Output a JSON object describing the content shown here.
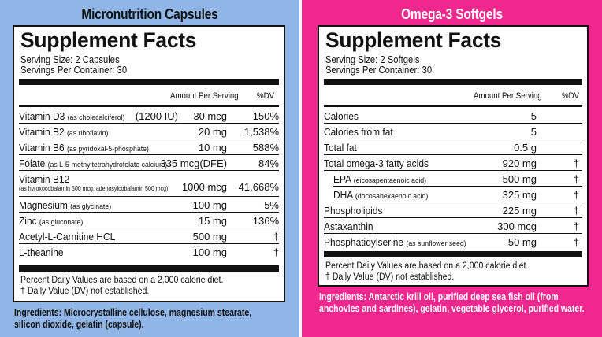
{
  "left": {
    "panel_title": "Micronutrition Capsules",
    "facts_title": "Supplement Facts",
    "serving_size": "Serving Size: 2 Capsules",
    "servings_per_container": "Servings Per Container: 30",
    "header_amount": "Amount Per Serving",
    "header_dv": "%DV",
    "rows": [
      {
        "name": "Vitamin D3",
        "sub": "(as cholecalciferol)",
        "extra": "(1200 IU)",
        "amount": "30 mcg",
        "dv": "150%"
      },
      {
        "name": "Vitamin B2",
        "sub": "(as riboflavin)",
        "amount": "20 mg",
        "dv": "1,538%"
      },
      {
        "name": "Vitamin B6",
        "sub": "(as pyridoxal-5-phosphate)",
        "amount": "10 mg",
        "dv": "588%"
      },
      {
        "name": "Folate",
        "sub": "(as L-5-methyltetrahydrofolate calcium)",
        "amount": "335 mcg(DFE)",
        "dv": "84%"
      },
      {
        "name": "Vitamin B12",
        "sub": "(as hyroxocobalamin 500 mcg, adenosylcobalamin 500 mcg)",
        "amount": "1000 mcg",
        "dv": "41,668%"
      },
      {
        "name": "Magnesium",
        "sub": "(as glycinate)",
        "amount": "100 mg",
        "dv": "5%"
      },
      {
        "name": "Zinc",
        "sub": "(as gluconate)",
        "amount": "15 mg",
        "dv": "136%"
      },
      {
        "name": "Acetyl-L-Carnitine HCL",
        "sub": "",
        "amount": "500 mg",
        "dv": "†"
      },
      {
        "name": "L-theanine",
        "sub": "",
        "amount": "100 mg",
        "dv": "†"
      }
    ],
    "footnote_1": "Percent Daily Values are based on a 2,000 calorie diet.",
    "footnote_2": "† Daily Value (DV) not established.",
    "ingredients_1": "Ingredients: Microcrystalline cellulose, magnesium stearate,",
    "ingredients_2": "silicon dioxide, gelatin (capsule)."
  },
  "right": {
    "panel_title": "Omega-3 Softgels",
    "facts_title": "Supplement Facts",
    "serving_size": "Serving Size: 2 Softgels",
    "servings_per_container": "Servings Per Container: 30",
    "header_amount": "Amount Per Serving",
    "header_dv": "%DV",
    "rows": [
      {
        "name": "Calories",
        "sub": "",
        "amount": "5",
        "dv": ""
      },
      {
        "name": "Calories from fat",
        "sub": "",
        "amount": "5",
        "dv": ""
      },
      {
        "name": "Total fat",
        "sub": "",
        "amount": "0.5 g",
        "dv": ""
      },
      {
        "name": "Total omega-3 fatty acids",
        "sub": "",
        "amount": "920 mg",
        "dv": "†"
      },
      {
        "name": "EPA",
        "sub": "(eicosapentaenoic acid)",
        "amount": "500 mg",
        "dv": "†"
      },
      {
        "name": "DHA",
        "sub": "(docosahexaenoic acid)",
        "amount": "325 mg",
        "dv": "†"
      },
      {
        "name": "Phospholipids",
        "sub": "",
        "amount": "225 mg",
        "dv": "†"
      },
      {
        "name": "Astaxanthin",
        "sub": "",
        "amount": "300 mcg",
        "dv": "†"
      },
      {
        "name": "Phosphatidylserine",
        "sub": "(as sunflower seed)",
        "amount": "50 mg",
        "dv": "†"
      }
    ],
    "footnote_1": "Percent Daily Values are based on a 2,000 calorie diet.",
    "footnote_2": "† Daily Value (DV) not established.",
    "ingredients_1": "Ingredients: Antarctic krill oil, purified deep sea fish oil (from",
    "ingredients_2": "anchovies and sardines), gelatin, vegetable glycerol, purified water."
  }
}
